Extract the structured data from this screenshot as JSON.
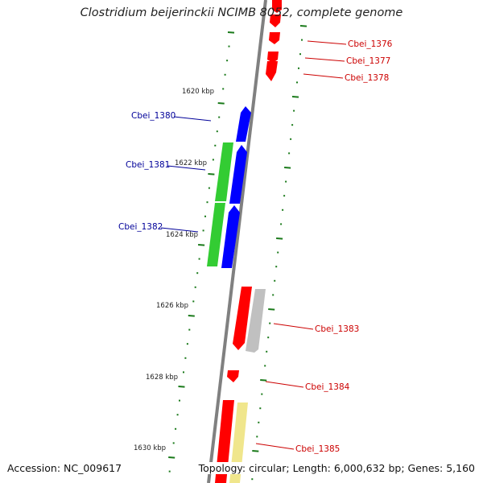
{
  "title": "Clostridium beijerinckii NCIMB 8052, complete genome",
  "footer": {
    "accession": "Accession: NC_009617",
    "summary": "Topology: circular; Length: 6,000,632 bp; Genes: 5,160"
  },
  "colors": {
    "backbone": "#808080",
    "tick": "#1a7a1a",
    "label_forward": "#cc0000",
    "label_reverse": "#000099",
    "feature_red": "#ff0000",
    "feature_blue": "#0000ff",
    "feature_green": "#33cc33",
    "feature_gray": "#c0c0c0",
    "feature_yellow": "#f0e68c"
  },
  "kbp_labels": [
    {
      "text": "1620 kbp"
    },
    {
      "text": "1622 kbp"
    },
    {
      "text": "1624 kbp"
    },
    {
      "text": "1626 kbp"
    },
    {
      "text": "1628 kbp"
    },
    {
      "text": "1630 kbp"
    }
  ],
  "gene_labels": [
    {
      "text": "Cbei_1376",
      "strand": "forward"
    },
    {
      "text": "Cbei_1377",
      "strand": "forward"
    },
    {
      "text": "Cbei_1378",
      "strand": "forward"
    },
    {
      "text": "Cbei_1380",
      "strand": "reverse"
    },
    {
      "text": "Cbei_1381",
      "strand": "reverse"
    },
    {
      "text": "Cbei_1382",
      "strand": "reverse"
    },
    {
      "text": "Cbei_1383",
      "strand": "forward"
    },
    {
      "text": "Cbei_1384",
      "strand": "forward"
    },
    {
      "text": "Cbei_1385",
      "strand": "forward"
    }
  ]
}
